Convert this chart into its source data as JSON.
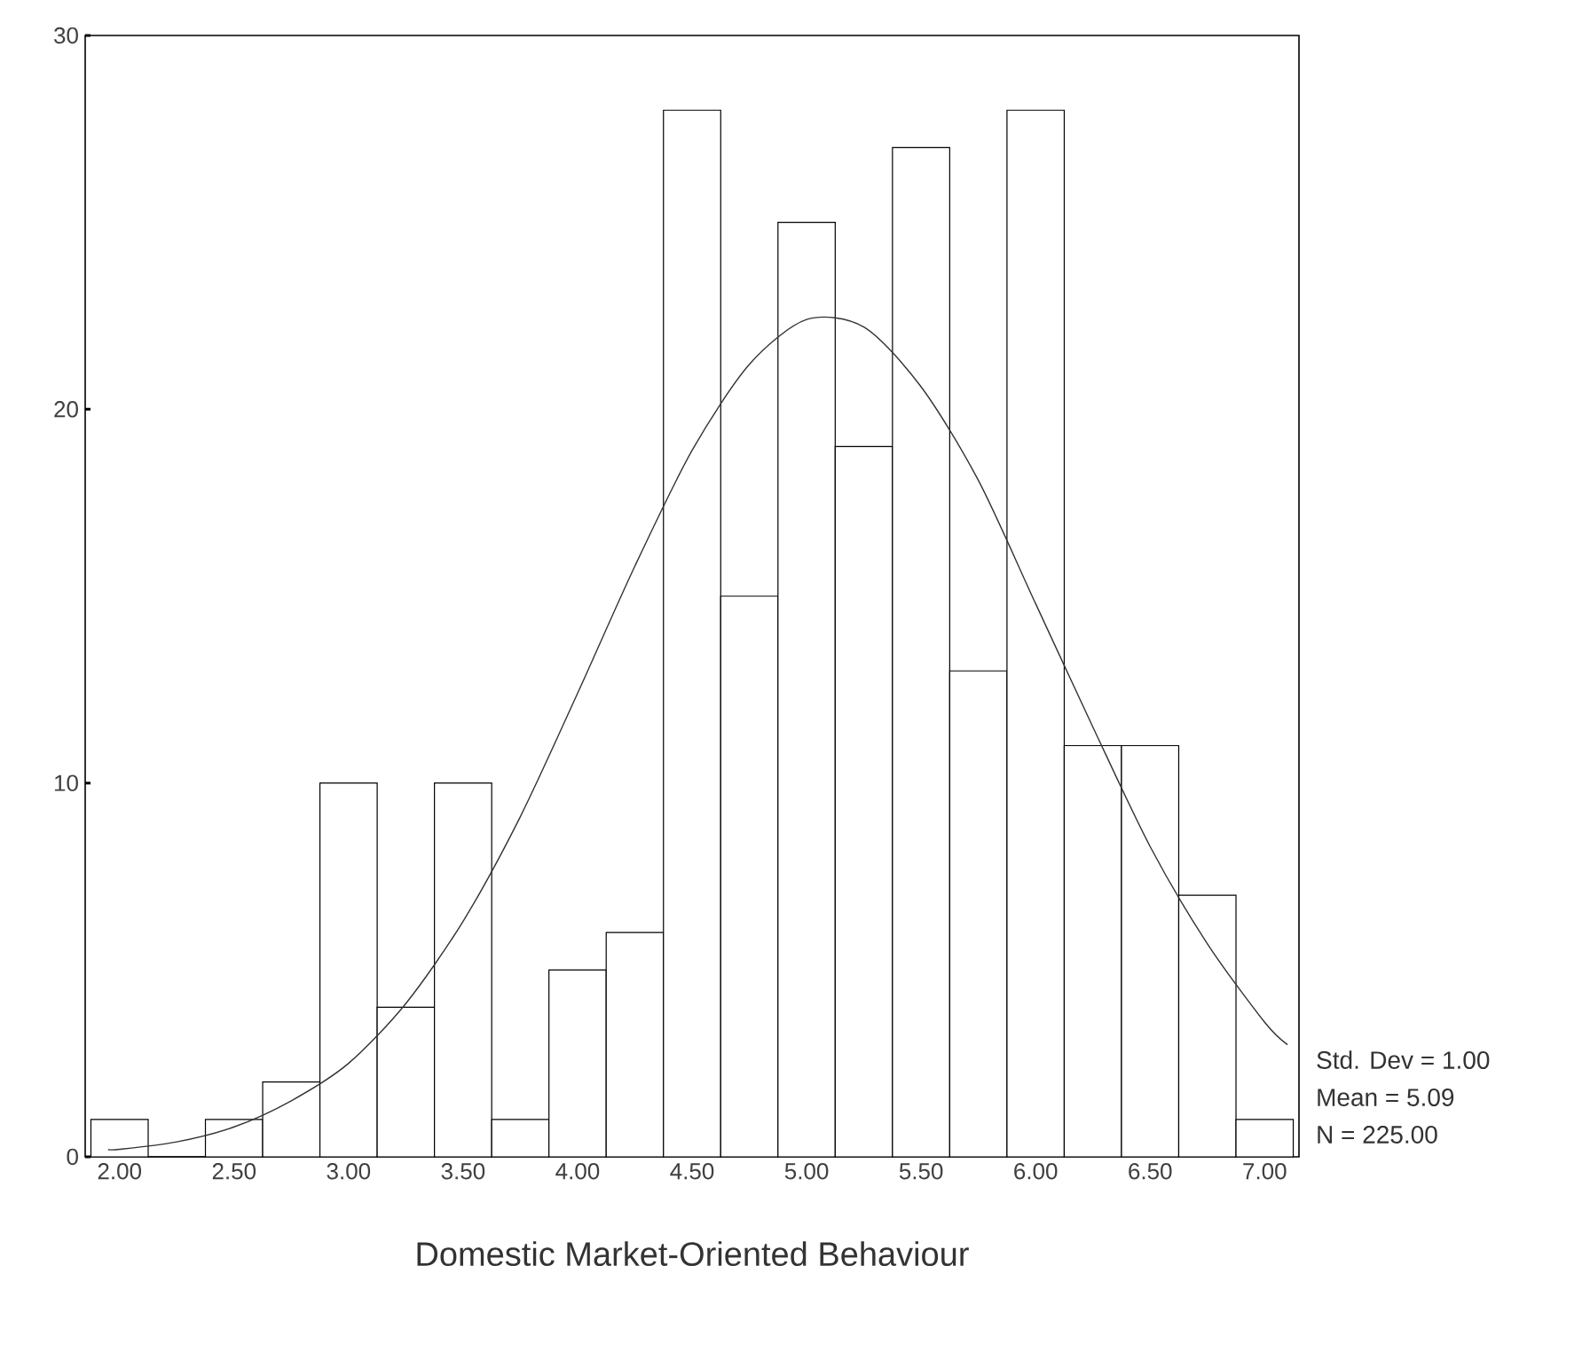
{
  "chart_data": {
    "type": "histogram",
    "xlabel": "Domestic Market-Oriented Behaviour",
    "bins": [
      1.875,
      2.125,
      2.375,
      2.625,
      2.875,
      3.125,
      3.375,
      3.625,
      3.875,
      4.125,
      4.375,
      4.625,
      4.875,
      5.125,
      5.375,
      5.625,
      5.875,
      6.125,
      6.375,
      6.625,
      6.875,
      7.125
    ],
    "values": [
      1,
      0,
      1,
      2,
      10,
      4,
      10,
      1,
      5,
      6,
      28,
      15,
      25,
      19,
      27,
      13,
      28,
      11,
      11,
      7,
      1
    ],
    "color": "#ffffff",
    "series": [
      {
        "type": "line",
        "color": "#333333",
        "x": [
          1.95,
          2.0,
          2.25,
          2.5,
          2.75,
          3.0,
          3.25,
          3.5,
          3.75,
          4.0,
          4.25,
          4.5,
          4.75,
          5.0,
          5.25,
          5.5,
          5.75,
          6.0,
          6.25,
          6.5,
          6.75,
          7.0,
          7.1
        ],
        "values": [
          0.2,
          0.2,
          0.4,
          0.8,
          1.5,
          2.5,
          4.1,
          6.3,
          9.1,
          12.4,
          15.8,
          18.9,
          21.2,
          22.4,
          22.2,
          20.6,
          18.1,
          14.8,
          11.5,
          8.3,
          5.7,
          3.6,
          3.0
        ]
      }
    ],
    "xlim": [
      1.85,
      7.15
    ],
    "ylim": [
      0,
      30
    ],
    "xticks": [
      {
        "value": 2,
        "label": "2.00"
      },
      {
        "value": 2.5,
        "label": "2.50"
      },
      {
        "value": 3,
        "label": "3.00"
      },
      {
        "value": 3.5,
        "label": "3.50"
      },
      {
        "value": 4,
        "label": "4.00"
      },
      {
        "value": 4.5,
        "label": "4.50"
      },
      {
        "value": 5,
        "label": "5.00"
      },
      {
        "value": 5.5,
        "label": "5.50"
      },
      {
        "value": 6,
        "label": "6.00"
      },
      {
        "value": 6.5,
        "label": "6.50"
      },
      {
        "value": 7,
        "label": "7.00"
      }
    ],
    "yticks": [
      0,
      10,
      20,
      30
    ],
    "annotations": [
      "Std. Dev = 1.00",
      "Mean = 5.09",
      "N = 225.00"
    ],
    "grid": false
  }
}
